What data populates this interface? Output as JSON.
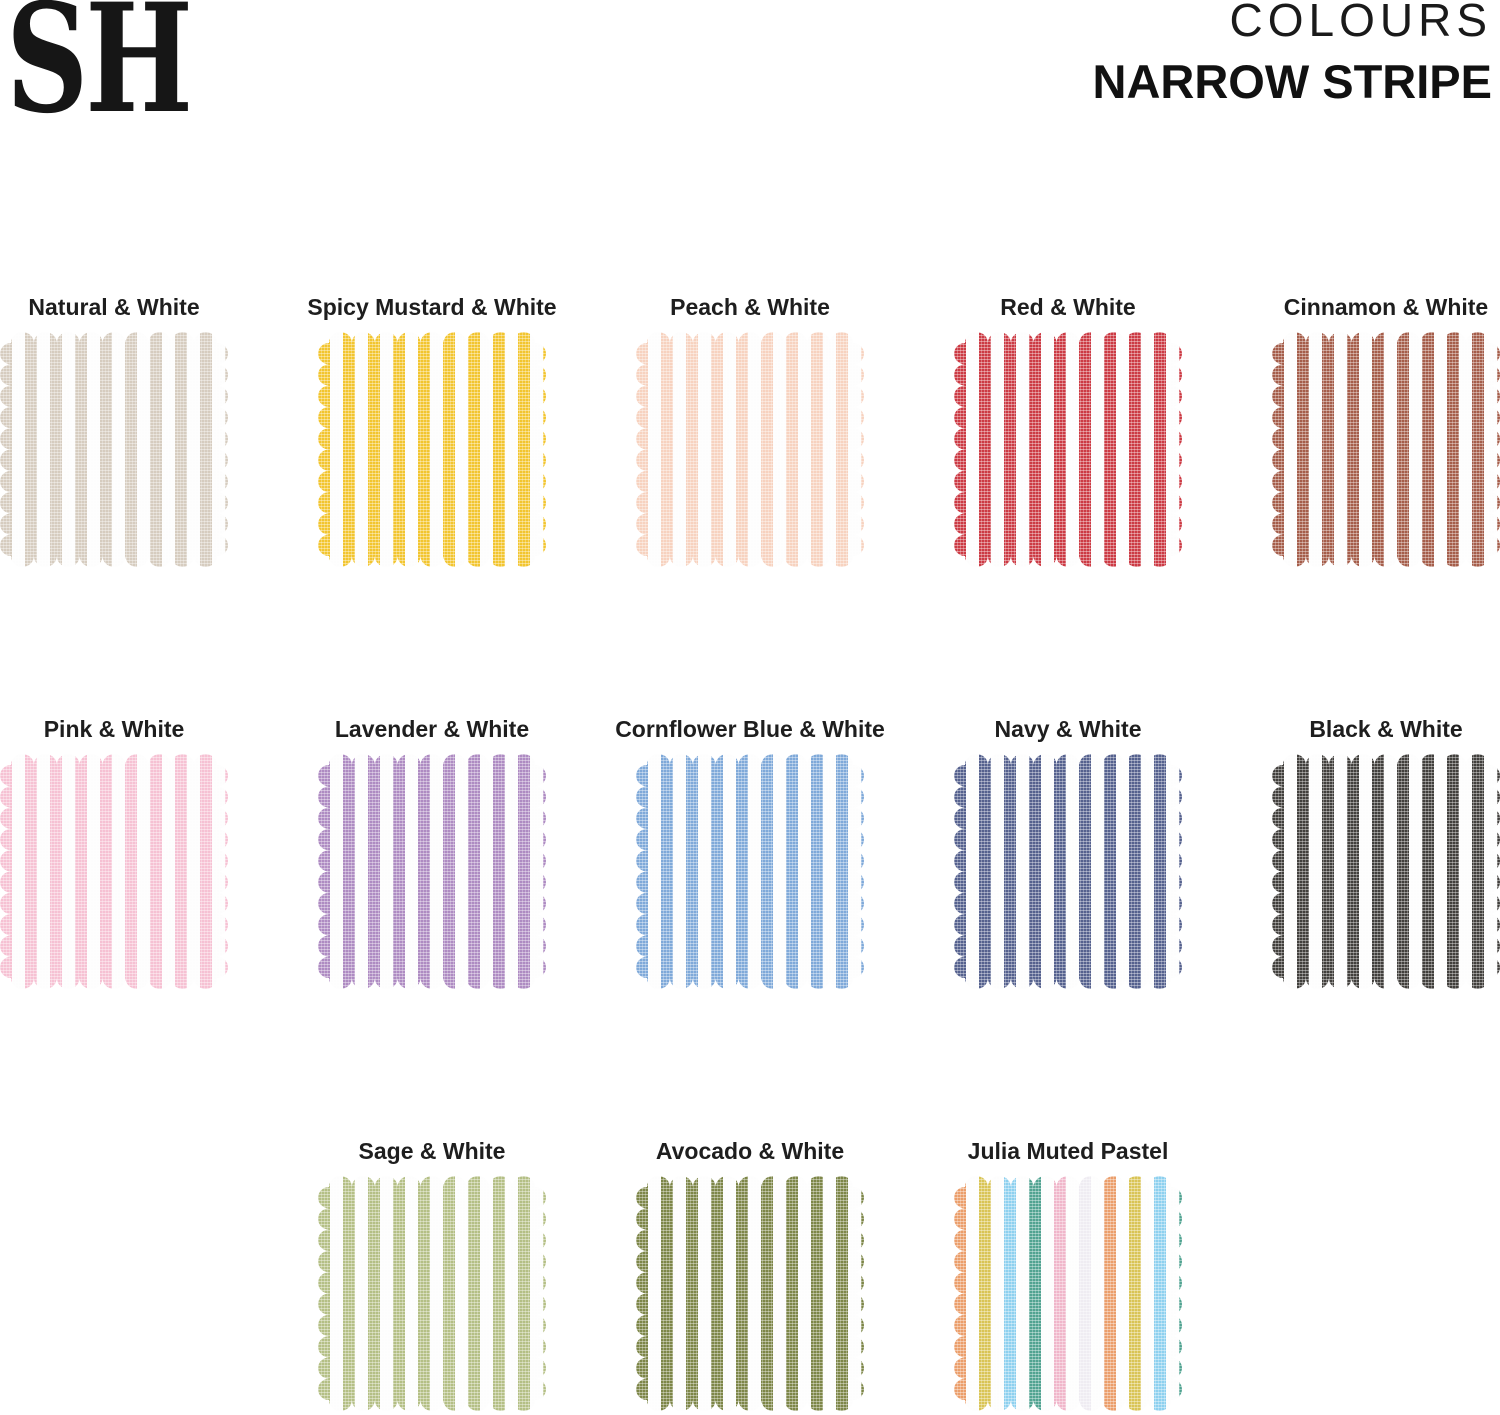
{
  "brand": {
    "logo": "SH"
  },
  "header": {
    "collection": "COLOURS",
    "title": "NARROW STRIPE"
  },
  "swatch_style": {
    "white": "#fdfdfd",
    "stripe_width": 12,
    "stripe_period": 25
  },
  "rows": [
    {
      "start_col": 0,
      "cells": [
        {
          "label": "Natural & White",
          "colors": [
            "#d6ccbf"
          ]
        },
        {
          "label": "Spicy Mustard & White",
          "colors": [
            "#f2c52f"
          ]
        },
        {
          "label": "Peach & White",
          "colors": [
            "#f7d2bf"
          ]
        },
        {
          "label": "Red & White",
          "colors": [
            "#cc3a44"
          ]
        },
        {
          "label": "Cinnamon & White",
          "colors": [
            "#a55d4a"
          ]
        }
      ]
    },
    {
      "start_col": 0,
      "cells": [
        {
          "label": "Pink & White",
          "colors": [
            "#f6c1d3"
          ]
        },
        {
          "label": "Lavender & White",
          "colors": [
            "#ae8bc2"
          ]
        },
        {
          "label": "Cornflower Blue & White",
          "colors": [
            "#7fa9d9"
          ]
        },
        {
          "label": "Navy & White",
          "colors": [
            "#55618e"
          ]
        },
        {
          "label": "Black & White",
          "colors": [
            "#413f3c"
          ]
        }
      ]
    },
    {
      "start_col": 1,
      "cells": [
        {
          "label": "Sage & White",
          "colors": [
            "#b4bf85"
          ]
        },
        {
          "label": "Avocado & White",
          "colors": [
            "#7d8648"
          ]
        },
        {
          "label": "Julia Muted Pastel",
          "colors": [
            "#eb9e6b",
            "#d9c455",
            "#8dd0ef",
            "#51a391",
            "#f0b6ca",
            "#efecf2"
          ]
        }
      ]
    }
  ]
}
